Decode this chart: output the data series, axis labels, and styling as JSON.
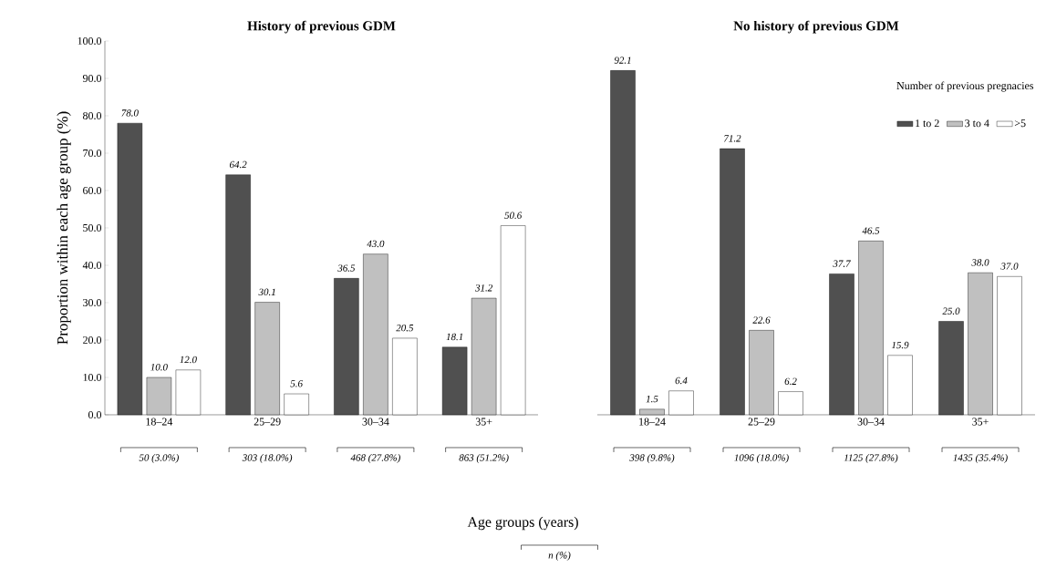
{
  "chart_data": [
    {
      "type": "bar",
      "title": "History of previous GDM",
      "ylabel": "Proportion within each age group (%)",
      "xlabel": "Age groups (years)",
      "categories": [
        "18–24",
        "25–29",
        "30–34",
        "35+"
      ],
      "series": [
        {
          "color": "#505050",
          "values": [
            78.0,
            64.2,
            36.5,
            18.1
          ],
          "value_labels": [
            "78.0",
            "64.2",
            "36.5",
            "18.1"
          ]
        },
        {
          "color": "#c0c0c0",
          "values": [
            10.0,
            30.1,
            43.0,
            31.2
          ],
          "value_labels": [
            "10.0",
            "30.1",
            "43.0",
            "31.2"
          ]
        },
        {
          "color": "#ffffff",
          "values": [
            12.0,
            5.6,
            20.5,
            50.6
          ],
          "value_labels": [
            "12.0",
            "5.6",
            "20.5",
            "50.6"
          ]
        }
      ],
      "ylim": [
        0,
        100
      ],
      "yticks": [
        {
          "value": 0,
          "label": "0.0"
        },
        {
          "value": 10,
          "label": "10.0"
        },
        {
          "value": 20,
          "label": "20.0"
        },
        {
          "value": 30,
          "label": "30.0"
        },
        {
          "value": 40,
          "label": "40.0"
        },
        {
          "value": 50,
          "label": "50.0"
        },
        {
          "value": 60,
          "label": "60.0"
        },
        {
          "value": 70,
          "label": "70.0"
        },
        {
          "value": 80,
          "label": "80.0"
        },
        {
          "value": 90,
          "label": "90.0"
        },
        {
          "value": 100,
          "label": "100.0"
        }
      ],
      "annotations": [
        "50 (3.0%)",
        "303 (18.0%)",
        "468 (27.8%)",
        "863 (51.2%)",
        "n (%)"
      ]
    },
    {
      "type": "bar",
      "title": "No history of previous GDM",
      "legend": "top right",
      "legend_title": "Number of previous pregnacies",
      "tick_labels": "x",
      "categories": [
        "18–24",
        "25–29",
        "30–34",
        "35+"
      ],
      "series": [
        {
          "name": "1 to 2",
          "color": "#505050",
          "values": [
            92.1,
            71.2,
            37.7,
            25.0
          ],
          "value_labels": [
            "92.1",
            "71.2",
            "37.7",
            "25.0"
          ]
        },
        {
          "name": "3 to 4",
          "color": "#c0c0c0",
          "values": [
            1.5,
            22.6,
            46.5,
            38.0
          ],
          "value_labels": [
            "1.5",
            "22.6",
            "46.5",
            "38.0"
          ]
        },
        {
          "name": ">5",
          "color": "#ffffff",
          "values": [
            6.4,
            6.2,
            15.9,
            37.0
          ],
          "value_labels": [
            "6.4",
            "6.2",
            "15.9",
            "37.0"
          ]
        }
      ],
      "ylim": [
        0,
        100
      ],
      "annotations": [
        "398 (9.8%)",
        "1096 (18.0%)",
        "1125 (27.8%)",
        "1435 (35.4%)"
      ]
    }
  ]
}
